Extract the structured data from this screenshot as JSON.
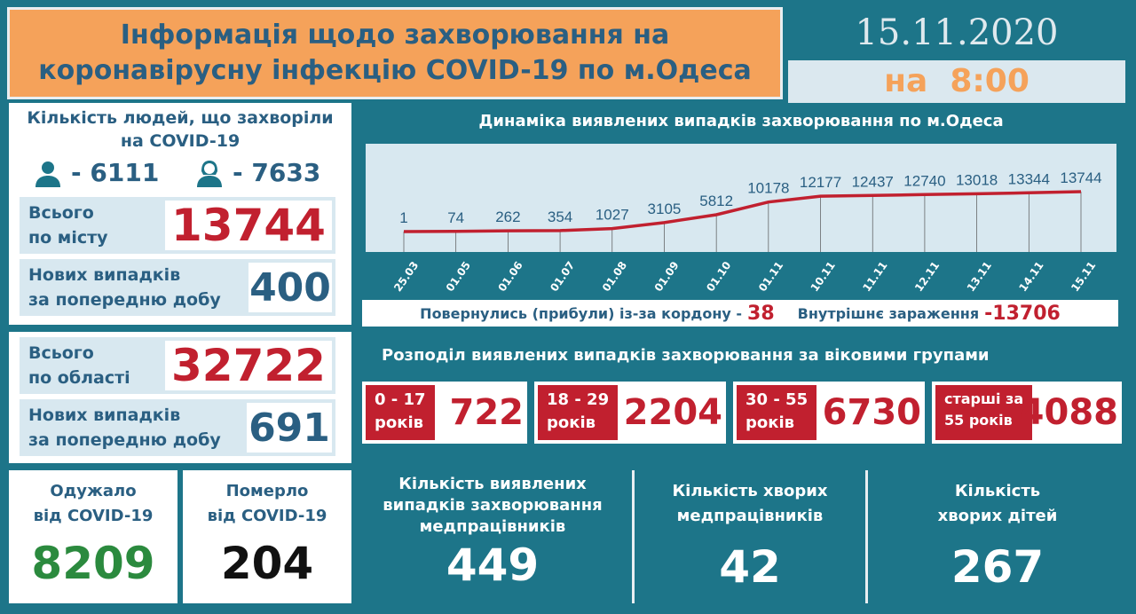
{
  "header": {
    "title_line1": "Інформація щодо захворювання на",
    "title_line2": "коронавірусну інфекцію COVID-19 по м.Одеса",
    "date": "15.11.2020",
    "time_prefix": "на",
    "time": "8:00"
  },
  "city": {
    "title": "Кількість людей, що захворіли на COVID-19",
    "male_icon": "male-user-icon",
    "male": "- 6111",
    "female_icon": "female-user-icon",
    "female": "- 7633",
    "total_label1": "Всього",
    "total_label2": "по місту",
    "total": "13744",
    "new_label1": "Нових випадків",
    "new_label2": "за попередню добу",
    "new": "400"
  },
  "region": {
    "total_label1": "Всього",
    "total_label2": "по області",
    "total": "32722",
    "new_label1": "Нових випадків",
    "new_label2": "за попередню добу",
    "new": "691"
  },
  "chart_data": {
    "type": "line",
    "title": "Динаміка виявлених випадків захворювання по м.Одеса",
    "categories": [
      "25.03",
      "01.05",
      "01.06",
      "01.07",
      "01.08",
      "01.09",
      "01.10",
      "01.11",
      "10.11",
      "11.11",
      "12.11",
      "13.11",
      "14.11",
      "15.11"
    ],
    "values": [
      1,
      74,
      262,
      354,
      1027,
      3105,
      5812,
      10178,
      12177,
      12437,
      12740,
      13018,
      13344,
      13744
    ],
    "line_color": "#c1202f",
    "data_labels": true,
    "grid": "vertical"
  },
  "origin": {
    "abroad_label": "Повернулись (прибули) із-за кордону -",
    "abroad": "38",
    "internal_label": "Внутрішнє зараження",
    "internal": "-13706"
  },
  "ages": {
    "title": "Розподіл виявлених випадків захворювання за віковими групами",
    "groups": [
      {
        "l1": "0 - 17",
        "l2": "років",
        "v": "722"
      },
      {
        "l1": "18 - 29",
        "l2": "років",
        "v": "2204"
      },
      {
        "l1": "30 - 55",
        "l2": "років",
        "v": "6730"
      },
      {
        "l1": "старші за",
        "l2": "55 років",
        "v": "4088"
      }
    ]
  },
  "bottom": {
    "recovered_l1": "Одужало",
    "recovered_l2": "від COVID-19",
    "recovered": "8209",
    "died_l1": "Померло",
    "died_l2": "від COVID-19",
    "died": "204",
    "med_l1": "Кількість виявлених",
    "med_l2": "випадків захворювання",
    "med_l3": "медпрацівників",
    "med": "449",
    "medsick_l1": "Кількість хворих",
    "medsick_l2": "медпрацівників",
    "medsick": "42",
    "kids_l1": "Кількість",
    "kids_l2": "хворих дітей",
    "kids": "267"
  }
}
